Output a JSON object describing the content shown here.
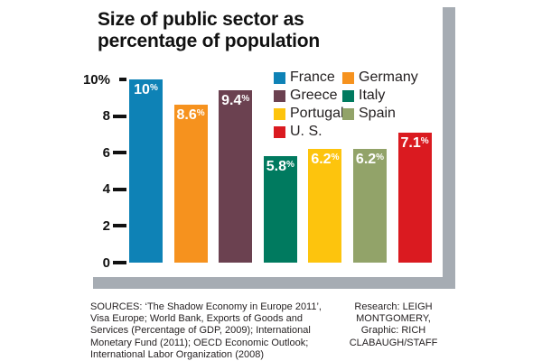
{
  "title": {
    "line1": "Size of public sector as",
    "line2": "percentage of population"
  },
  "chart_data": {
    "type": "bar",
    "title": "Size of public sector as percentage of population",
    "categories": [
      "France",
      "Germany",
      "Greece",
      "Italy",
      "Portugal",
      "Spain",
      "U. S."
    ],
    "values": [
      10,
      8.6,
      9.4,
      5.8,
      6.2,
      6.2,
      7.1
    ],
    "bar_labels": [
      "10%",
      "8.6%",
      "9.4%",
      "5.8%",
      "6.2%",
      "6.2%",
      "7.1%"
    ],
    "colors": [
      "#0e82b6",
      "#f6921e",
      "#6b4150",
      "#007a5f",
      "#fdc40d",
      "#92a369",
      "#da1a20"
    ],
    "xlabel": "",
    "ylabel": "",
    "ylim": [
      0,
      10
    ],
    "yticks": [
      {
        "value": 10,
        "label": "10%"
      },
      {
        "value": 8,
        "label": "8"
      },
      {
        "value": 6,
        "label": "6"
      },
      {
        "value": 4,
        "label": "4"
      },
      {
        "value": 2,
        "label": "2"
      },
      {
        "value": 0,
        "label": "0"
      }
    ],
    "grid": false,
    "legend_position": "top-right"
  },
  "legend": {
    "items": [
      {
        "label": "France",
        "color": "#0e82b6"
      },
      {
        "label": "Germany",
        "color": "#f6921e"
      },
      {
        "label": "Greece",
        "color": "#6b4150"
      },
      {
        "label": "Italy",
        "color": "#007a5f"
      },
      {
        "label": "Portugal",
        "color": "#fdc40d"
      },
      {
        "label": "Spain",
        "color": "#92a369"
      },
      {
        "label": "U. S.",
        "color": "#da1a20"
      }
    ]
  },
  "footer": {
    "sources_lines": [
      "SOURCES: ‘The Shadow Economy in Europe 2011’,",
      "Visa Europe; World Bank, Exports of Goods and",
      "Services (Percentage of GDP, 2009); International",
      "Monetary Fund (2011); OECD Economic Outlook;",
      "International Labor Organization (2008)"
    ],
    "credit_lines": [
      "Research: LEIGH MONTGOMERY,",
      "Graphic: RICH CLABAUGH/STAFF"
    ]
  },
  "decor": {
    "panel_shadow_color": "#a6acb3"
  }
}
